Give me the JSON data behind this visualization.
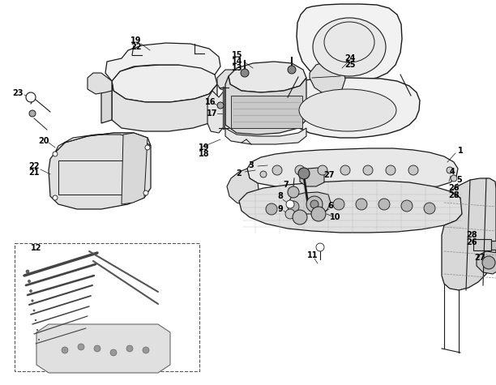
{
  "background_color": "#ffffff",
  "line_color": "#1a1a1a",
  "fig_width": 6.12,
  "fig_height": 4.75,
  "dpi": 100,
  "parts": {
    "seat_labels": [
      "1",
      "2",
      "3",
      "4",
      "5"
    ],
    "battery_labels": [
      "13",
      "14",
      "15",
      "16",
      "17",
      "18",
      "19",
      "22",
      "23",
      "24",
      "25"
    ],
    "frame_labels": [
      "6",
      "7",
      "8",
      "9",
      "10",
      "11",
      "26",
      "27",
      "28"
    ],
    "tool_labels": [
      "12"
    ],
    "box_labels": [
      "20",
      "21",
      "22"
    ]
  }
}
